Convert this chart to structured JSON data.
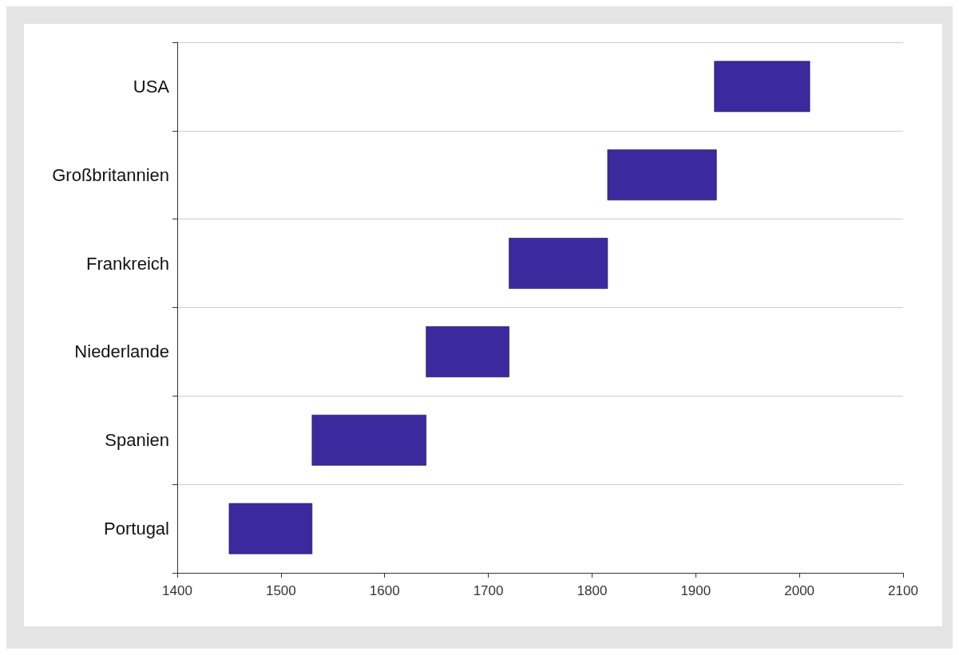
{
  "chart_data": {
    "type": "bar",
    "orientation": "horizontal",
    "categories": [
      "USA",
      "Großbritannien",
      "Frankreich",
      "Niederlande",
      "Spanien",
      "Portugal"
    ],
    "base": [
      1918,
      1815,
      1720,
      1640,
      1530,
      1450
    ],
    "values": [
      92,
      105,
      95,
      80,
      110,
      80
    ],
    "color": "#3b2a9e",
    "xlim": [
      1400,
      2100
    ],
    "xticks": [
      1400,
      1500,
      1600,
      1700,
      1800,
      1900,
      2000,
      2100
    ],
    "grid": "y"
  }
}
